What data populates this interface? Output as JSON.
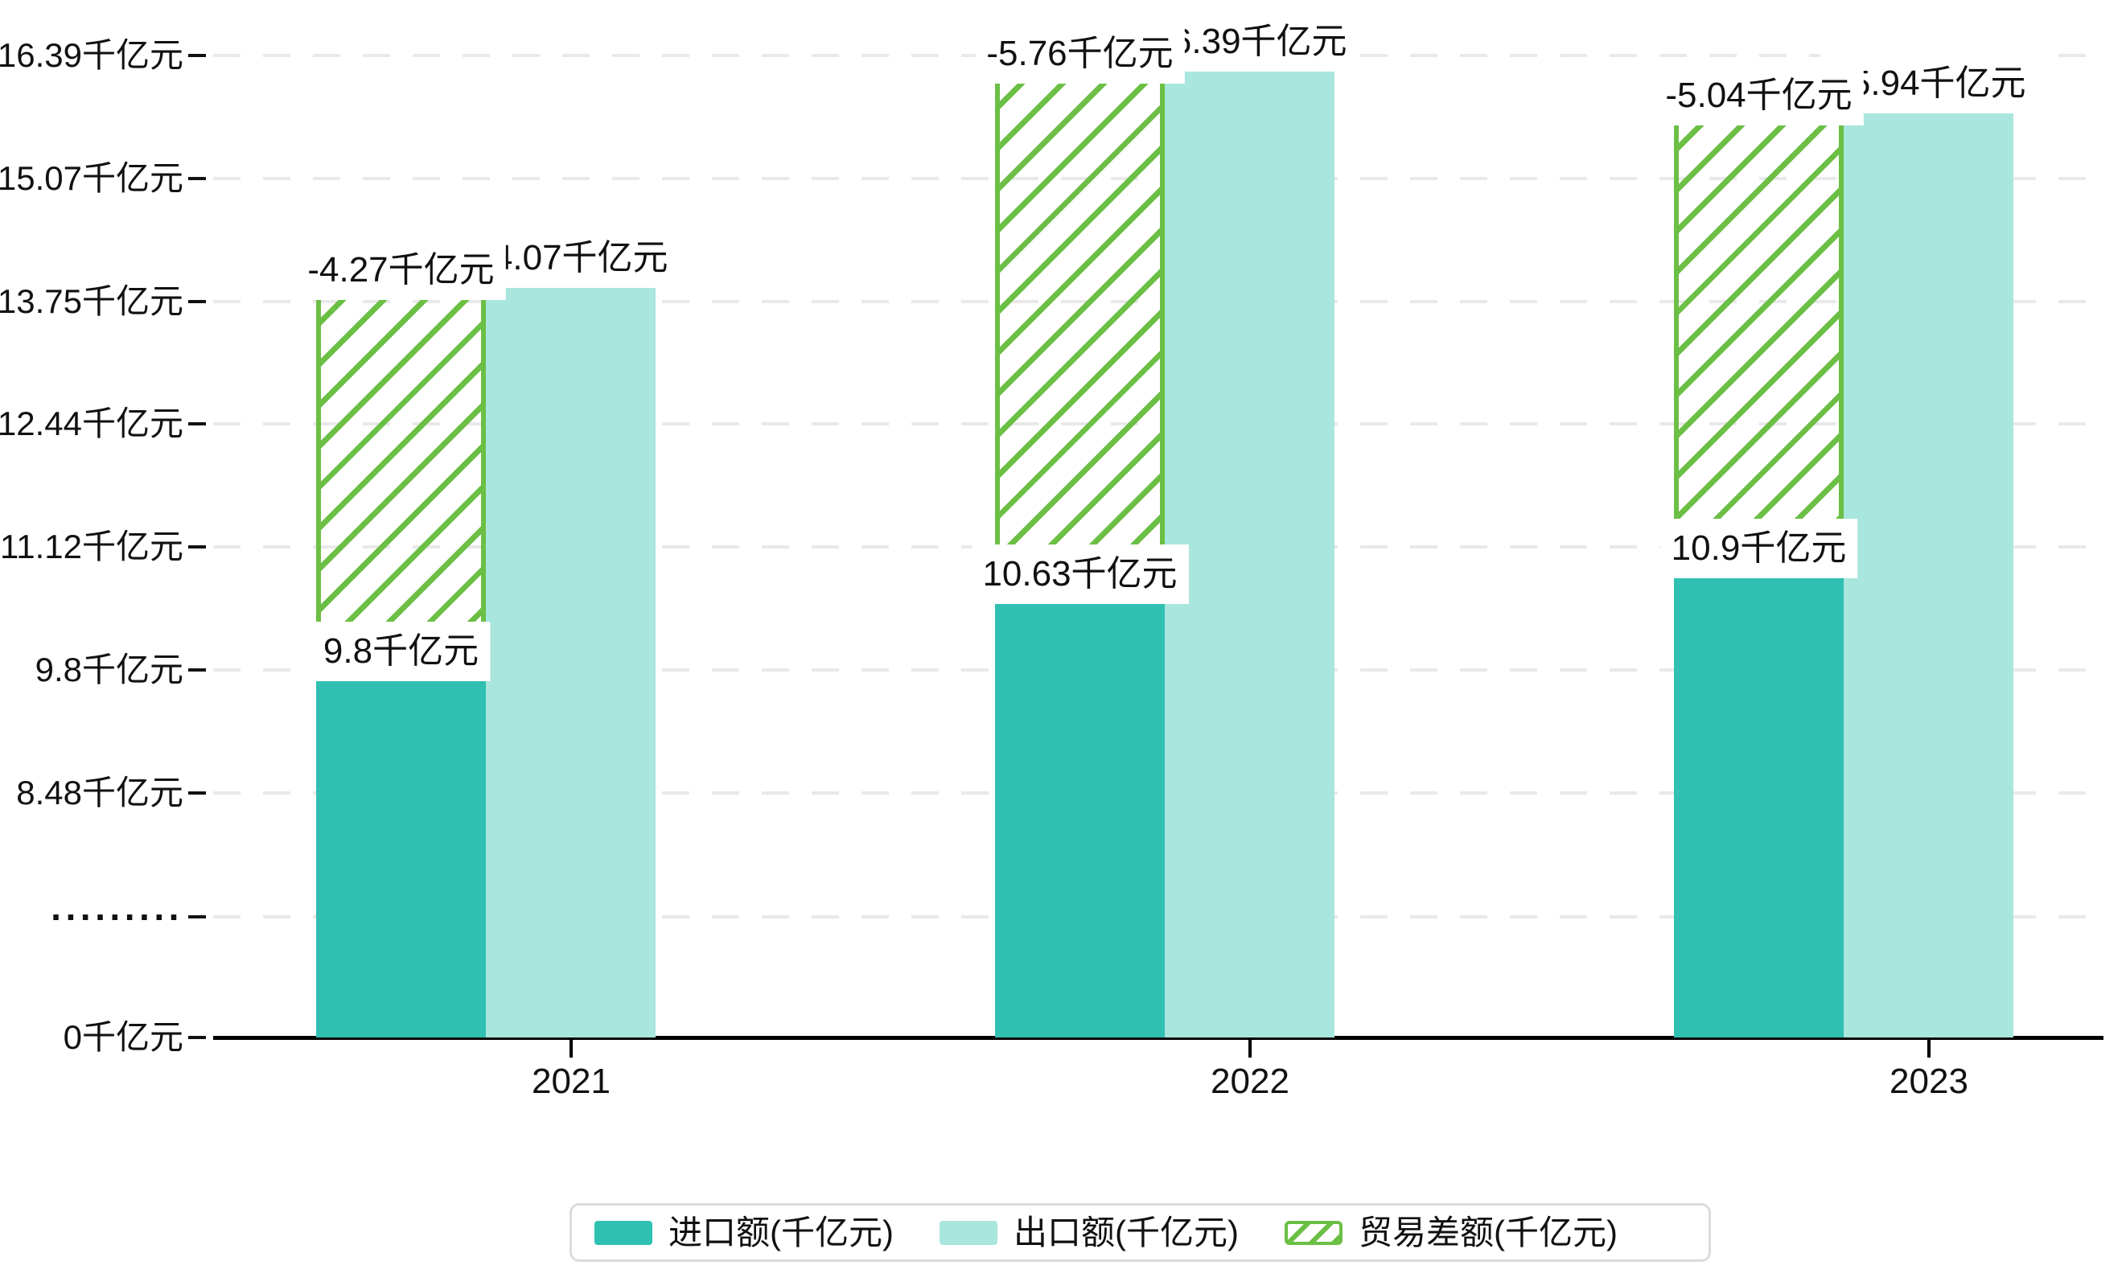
{
  "chart_data": {
    "type": "bar",
    "title": "",
    "unit": "千亿元",
    "categories": [
      "2021",
      "2022",
      "2023"
    ],
    "series": [
      {
        "name": "进口额(千亿元)",
        "style": "solid",
        "color": "#2fc0b2",
        "values": [
          9.8,
          10.63,
          10.9
        ],
        "data_labels": [
          "9.8千亿元",
          "10.63千亿元",
          "10.9千亿元"
        ]
      },
      {
        "name": "出口额(千亿元)",
        "style": "solid",
        "color": "#a9e6dd",
        "values": [
          14.07,
          16.39,
          15.94
        ],
        "data_labels": [
          "14.07千亿元",
          "16.39千亿元",
          "15.94千亿元"
        ]
      },
      {
        "name": "贸易差额(千亿元)",
        "style": "hatched",
        "color": "#6bbf45",
        "stacked_on": "进口额(千亿元)",
        "values": [
          -4.27,
          -5.76,
          -5.04
        ],
        "data_labels": [
          "-4.27千亿元",
          "-5.76千亿元",
          "-5.04千亿元"
        ]
      }
    ],
    "y_axis": {
      "axis_break": true,
      "grid": "dashed",
      "tick_labels": [
        "16.39千亿元",
        "15.07千亿元",
        "13.75千亿元",
        "12.44千亿元",
        "11.12千亿元",
        "9.8千亿元",
        "8.48千亿元",
        "·········",
        "0千亿元"
      ],
      "tick_values": [
        16.39,
        15.07,
        13.75,
        12.44,
        11.12,
        9.8,
        8.48,
        null,
        0
      ]
    },
    "x_axis": {
      "tick_labels": [
        "2021",
        "2022",
        "2023"
      ]
    },
    "legend": {
      "position": "bottom",
      "entries": [
        {
          "label": "进口额(千亿元)",
          "swatch": "solid",
          "color": "#2fc0b2"
        },
        {
          "label": "出口额(千亿元)",
          "swatch": "solid",
          "color": "#a9e6dd"
        },
        {
          "label": "贸易差额(千亿元)",
          "swatch": "hatched",
          "color": "#6bbf45"
        }
      ]
    },
    "colors": {
      "import_bar": "#2fc0b2",
      "export_bar": "#a9e6dd",
      "balance_hatch": "#6bbf45",
      "gridline": "#e9e9e9",
      "axis": "#000000",
      "text": "#111111",
      "legend_border": "#dcdcdc",
      "label_background": "#ffffff"
    }
  }
}
